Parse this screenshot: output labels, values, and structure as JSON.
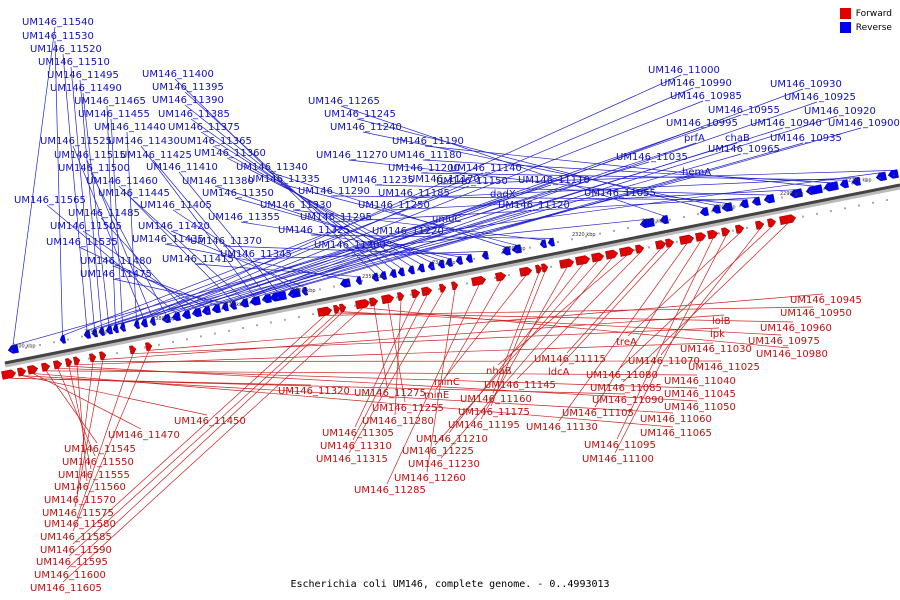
{
  "legend": {
    "forward_label": "Forward",
    "reverse_label": "Reverse",
    "forward_color": "#e00000",
    "reverse_color": "#0000ee"
  },
  "caption": "Escherichia coli UM146, complete genome. - 0..4993013",
  "ticks": [
    "2400 kbp",
    "2390 kbp",
    "2380 kbp",
    "2370 kbp",
    "2360 kbp",
    "2350 kbp",
    "2340 kbp",
    "2330 kbp",
    "2320 kbp",
    "2310 kbp",
    "2300 kbp",
    "2290 kbp",
    "2280 kbp"
  ],
  "reverse_labels": [
    "UM146_11540",
    "UM146_11530",
    "UM146_11520",
    "UM146_11510",
    "UM146_11495",
    "UM146_11490",
    "UM146_11465",
    "UM146_11455",
    "UM146_11440",
    "UM146_11525",
    "UM146_11515",
    "UM146_11500",
    "UM146_11565",
    "UM146_11485",
    "UM146_11505",
    "UM146_11535",
    "UM146_11480",
    "UM146_11475",
    "UM146_11460",
    "UM146_11445",
    "UM146_11430",
    "UM146_11425",
    "UM146_11410",
    "UM146_11405",
    "UM146_11420",
    "UM146_11435",
    "UM146_11415",
    "UM146_11400",
    "UM146_11395",
    "UM146_11390",
    "UM146_11385",
    "UM146_11375",
    "UM146_11365",
    "UM146_11360",
    "UM146_11380",
    "UM146_11350",
    "UM146_11355",
    "UM146_11370",
    "UM146_11345",
    "UM146_11340",
    "UM146_11335",
    "UM146_11330",
    "UM146_11325",
    "UM146_11300",
    "UM146_11265",
    "UM146_11245",
    "UM146_11240",
    "UM146_11270",
    "UM146_11290",
    "UM146_11295",
    "UM146_11235",
    "UM146_11250",
    "UM146_11190",
    "UM146_11180",
    "UM146_11200",
    "UM146_11185",
    "UM146_11220",
    "UM146_11170",
    "umuC",
    "UM146_11140",
    "UM146_11150",
    "dadX",
    "UM146_11110",
    "UM146_11120",
    "UM146_11055",
    "UM146_11035",
    "UM146_11000",
    "UM146_10990",
    "UM146_10985",
    "UM146_10995",
    "prfA",
    "UM146_10955",
    "chaB",
    "UM146_10965",
    "hemA",
    "UM146_10940",
    "UM146_10930",
    "UM146_10925",
    "UM146_10920",
    "UM146_10935",
    "UM146_10900"
  ],
  "forward_labels": [
    "UM146_11320",
    "UM146_11450",
    "UM146_11470",
    "UM146_11545",
    "UM146_11550",
    "UM146_11555",
    "UM146_11560",
    "UM146_11570",
    "UM146_11575",
    "UM146_11580",
    "UM146_11585",
    "UM146_11590",
    "UM146_11595",
    "UM146_11600",
    "UM146_11605",
    "UM146_11275",
    "UM146_11255",
    "UM146_11280",
    "UM146_11305",
    "UM146_11310",
    "UM146_11315",
    "UM146_11260",
    "UM146_11285",
    "minC",
    "minE",
    "UM146_11160",
    "UM146_11175",
    "UM146_11195",
    "UM146_11210",
    "UM146_11225",
    "UM146_11230",
    "nhaB",
    "UM146_11145",
    "UM146_11115",
    "ldcA",
    "UM146_11130",
    "UM146_11105",
    "UM146_11095",
    "UM146_11100",
    "treA",
    "UM146_11070",
    "UM146_11080",
    "UM146_11085",
    "UM146_11090",
    "UM146_11060",
    "UM146_11065",
    "UM146_11040",
    "UM146_11045",
    "UM146_11050",
    "UM146_11030",
    "UM146_11025",
    "lolB",
    "ipk",
    "UM146_10945",
    "UM146_10950",
    "UM146_10960",
    "UM146_10975",
    "UM146_10980"
  ]
}
